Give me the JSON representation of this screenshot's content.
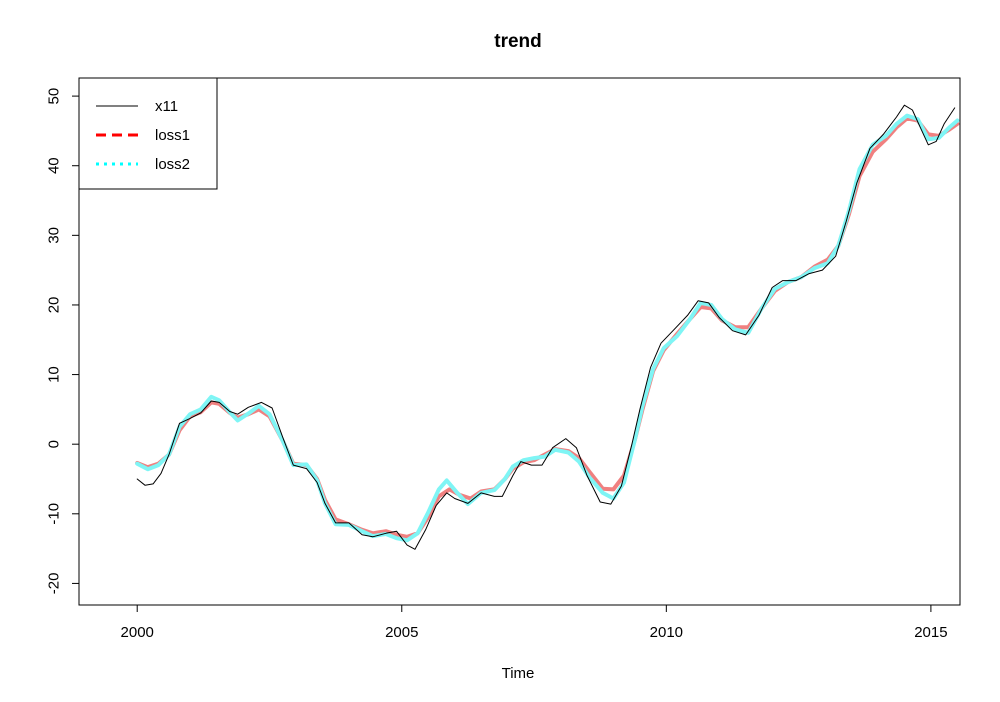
{
  "chart_data": {
    "type": "line",
    "title": "trend",
    "xlabel": "Time",
    "ylabel": "",
    "xlim": [
      1998.9,
      2015.55
    ],
    "ylim": [
      -23.1,
      52.6
    ],
    "x_ticks": [
      2000,
      2005,
      2010,
      2015
    ],
    "y_ticks": [
      -20,
      -10,
      0,
      10,
      20,
      30,
      40,
      50
    ],
    "legend_position": "top-left",
    "grid": false,
    "series": [
      {
        "name": "x11",
        "color": "#000000",
        "line_style": "solid",
        "points": [
          [
            2000.0,
            -5.0
          ],
          [
            2000.15,
            -5.9
          ],
          [
            2000.3,
            -5.7
          ],
          [
            2000.45,
            -4.2
          ],
          [
            2000.6,
            -1.5
          ],
          [
            2000.8,
            3.0
          ],
          [
            2001.0,
            3.7
          ],
          [
            2001.2,
            4.5
          ],
          [
            2001.4,
            6.2
          ],
          [
            2001.55,
            6.0
          ],
          [
            2001.75,
            4.7
          ],
          [
            2001.9,
            4.3
          ],
          [
            2002.1,
            5.3
          ],
          [
            2002.35,
            6.0
          ],
          [
            2002.55,
            5.2
          ],
          [
            2002.75,
            1.0
          ],
          [
            2002.95,
            -3.0
          ],
          [
            2003.2,
            -3.5
          ],
          [
            2003.4,
            -5.5
          ],
          [
            2003.55,
            -8.5
          ],
          [
            2003.75,
            -11.3
          ],
          [
            2004.0,
            -11.3
          ],
          [
            2004.25,
            -13.0
          ],
          [
            2004.45,
            -13.3
          ],
          [
            2004.7,
            -12.8
          ],
          [
            2004.9,
            -12.5
          ],
          [
            2005.1,
            -14.5
          ],
          [
            2005.25,
            -15.1
          ],
          [
            2005.45,
            -12.3
          ],
          [
            2005.65,
            -8.8
          ],
          [
            2005.85,
            -7.0
          ],
          [
            2006.0,
            -7.8
          ],
          [
            2006.25,
            -8.5
          ],
          [
            2006.5,
            -7.0
          ],
          [
            2006.75,
            -7.5
          ],
          [
            2006.9,
            -7.5
          ],
          [
            2007.1,
            -4.5
          ],
          [
            2007.25,
            -2.5
          ],
          [
            2007.45,
            -3.0
          ],
          [
            2007.65,
            -3.0
          ],
          [
            2007.85,
            -0.5
          ],
          [
            2008.1,
            0.8
          ],
          [
            2008.3,
            -0.5
          ],
          [
            2008.5,
            -4.5
          ],
          [
            2008.75,
            -8.3
          ],
          [
            2008.95,
            -8.6
          ],
          [
            2009.15,
            -6.0
          ],
          [
            2009.35,
            0.0
          ],
          [
            2009.5,
            5.0
          ],
          [
            2009.7,
            11.0
          ],
          [
            2009.9,
            14.5
          ],
          [
            2010.15,
            16.5
          ],
          [
            2010.4,
            18.5
          ],
          [
            2010.6,
            20.6
          ],
          [
            2010.8,
            20.3
          ],
          [
            2011.0,
            18.2
          ],
          [
            2011.25,
            16.3
          ],
          [
            2011.5,
            15.7
          ],
          [
            2011.75,
            18.5
          ],
          [
            2012.0,
            22.5
          ],
          [
            2012.2,
            23.5
          ],
          [
            2012.45,
            23.5
          ],
          [
            2012.7,
            24.5
          ],
          [
            2012.95,
            25.0
          ],
          [
            2013.2,
            27.0
          ],
          [
            2013.4,
            32.0
          ],
          [
            2013.6,
            37.5
          ],
          [
            2013.85,
            42.5
          ],
          [
            2014.1,
            44.5
          ],
          [
            2014.35,
            47.0
          ],
          [
            2014.5,
            48.7
          ],
          [
            2014.65,
            48.0
          ],
          [
            2014.8,
            45.5
          ],
          [
            2014.95,
            43.0
          ],
          [
            2015.1,
            43.5
          ],
          [
            2015.25,
            46.0
          ],
          [
            2015.45,
            48.3
          ]
        ]
      },
      {
        "name": "loss1",
        "color": "#f08080",
        "line_style": "dashed",
        "points": [
          [
            2000.0,
            -2.7
          ],
          [
            2000.2,
            -3.3
          ],
          [
            2000.4,
            -2.8
          ],
          [
            2000.6,
            -1.5
          ],
          [
            2000.8,
            2.0
          ],
          [
            2001.0,
            4.0
          ],
          [
            2001.2,
            4.6
          ],
          [
            2001.4,
            6.0
          ],
          [
            2001.55,
            5.8
          ],
          [
            2001.75,
            4.5
          ],
          [
            2001.9,
            3.8
          ],
          [
            2002.1,
            4.3
          ],
          [
            2002.3,
            5.0
          ],
          [
            2002.5,
            4.0
          ],
          [
            2002.75,
            0.5
          ],
          [
            2002.95,
            -2.8
          ],
          [
            2003.2,
            -3.0
          ],
          [
            2003.4,
            -5.0
          ],
          [
            2003.55,
            -8.0
          ],
          [
            2003.75,
            -10.8
          ],
          [
            2004.0,
            -11.5
          ],
          [
            2004.25,
            -12.3
          ],
          [
            2004.45,
            -12.8
          ],
          [
            2004.7,
            -12.5
          ],
          [
            2004.9,
            -13.0
          ],
          [
            2005.1,
            -13.3
          ],
          [
            2005.3,
            -12.8
          ],
          [
            2005.5,
            -10.5
          ],
          [
            2005.7,
            -7.5
          ],
          [
            2005.9,
            -6.5
          ],
          [
            2006.1,
            -7.3
          ],
          [
            2006.3,
            -7.8
          ],
          [
            2006.5,
            -6.8
          ],
          [
            2006.75,
            -6.5
          ],
          [
            2006.95,
            -5.0
          ],
          [
            2007.1,
            -3.5
          ],
          [
            2007.3,
            -2.6
          ],
          [
            2007.5,
            -2.3
          ],
          [
            2007.7,
            -1.5
          ],
          [
            2007.9,
            -0.7
          ],
          [
            2008.15,
            -1.0
          ],
          [
            2008.35,
            -2.0
          ],
          [
            2008.55,
            -4.0
          ],
          [
            2008.8,
            -6.4
          ],
          [
            2009.0,
            -6.5
          ],
          [
            2009.2,
            -4.5
          ],
          [
            2009.4,
            0.5
          ],
          [
            2009.55,
            5.0
          ],
          [
            2009.75,
            10.5
          ],
          [
            2009.95,
            13.5
          ],
          [
            2010.2,
            15.8
          ],
          [
            2010.45,
            18.0
          ],
          [
            2010.65,
            19.7
          ],
          [
            2010.85,
            19.5
          ],
          [
            2011.05,
            17.8
          ],
          [
            2011.3,
            16.8
          ],
          [
            2011.55,
            16.8
          ],
          [
            2011.8,
            19.5
          ],
          [
            2012.05,
            22.0
          ],
          [
            2012.3,
            23.3
          ],
          [
            2012.55,
            24.0
          ],
          [
            2012.8,
            25.5
          ],
          [
            2013.05,
            26.5
          ],
          [
            2013.25,
            28.5
          ],
          [
            2013.45,
            33.0
          ],
          [
            2013.65,
            38.5
          ],
          [
            2013.9,
            42.0
          ],
          [
            2014.15,
            43.8
          ],
          [
            2014.35,
            45.5
          ],
          [
            2014.55,
            46.8
          ],
          [
            2014.75,
            46.5
          ],
          [
            2014.95,
            44.5
          ],
          [
            2015.15,
            44.3
          ],
          [
            2015.35,
            45.2
          ],
          [
            2015.5,
            46.0
          ]
        ]
      },
      {
        "name": "loss2",
        "color": "#7ff5f5",
        "line_style": "dotted",
        "points": [
          [
            2000.0,
            -2.8
          ],
          [
            2000.2,
            -3.6
          ],
          [
            2000.4,
            -3.0
          ],
          [
            2000.6,
            -1.5
          ],
          [
            2000.8,
            2.5
          ],
          [
            2001.0,
            4.3
          ],
          [
            2001.2,
            5.0
          ],
          [
            2001.4,
            6.8
          ],
          [
            2001.55,
            6.3
          ],
          [
            2001.75,
            4.6
          ],
          [
            2001.9,
            3.4
          ],
          [
            2002.1,
            4.4
          ],
          [
            2002.3,
            5.5
          ],
          [
            2002.5,
            4.3
          ],
          [
            2002.75,
            0.5
          ],
          [
            2002.95,
            -3.0
          ],
          [
            2003.2,
            -2.9
          ],
          [
            2003.4,
            -5.2
          ],
          [
            2003.55,
            -8.5
          ],
          [
            2003.75,
            -11.5
          ],
          [
            2004.0,
            -11.6
          ],
          [
            2004.25,
            -12.5
          ],
          [
            2004.45,
            -13.2
          ],
          [
            2004.7,
            -12.9
          ],
          [
            2004.9,
            -13.5
          ],
          [
            2005.1,
            -13.8
          ],
          [
            2005.3,
            -12.8
          ],
          [
            2005.5,
            -9.8
          ],
          [
            2005.7,
            -6.5
          ],
          [
            2005.85,
            -5.2
          ],
          [
            2006.05,
            -7.0
          ],
          [
            2006.25,
            -8.6
          ],
          [
            2006.5,
            -7.0
          ],
          [
            2006.75,
            -6.6
          ],
          [
            2006.95,
            -5.0
          ],
          [
            2007.1,
            -3.2
          ],
          [
            2007.3,
            -2.3
          ],
          [
            2007.5,
            -2.0
          ],
          [
            2007.7,
            -1.8
          ],
          [
            2007.9,
            -0.8
          ],
          [
            2008.15,
            -1.2
          ],
          [
            2008.35,
            -2.5
          ],
          [
            2008.55,
            -4.8
          ],
          [
            2008.8,
            -7.0
          ],
          [
            2009.0,
            -7.8
          ],
          [
            2009.2,
            -5.5
          ],
          [
            2009.4,
            0.5
          ],
          [
            2009.55,
            5.5
          ],
          [
            2009.75,
            10.8
          ],
          [
            2009.95,
            13.8
          ],
          [
            2010.2,
            15.5
          ],
          [
            2010.45,
            18.0
          ],
          [
            2010.65,
            20.3
          ],
          [
            2010.85,
            20.0
          ],
          [
            2011.05,
            18.0
          ],
          [
            2011.3,
            16.5
          ],
          [
            2011.55,
            16.0
          ],
          [
            2011.8,
            19.5
          ],
          [
            2012.05,
            22.3
          ],
          [
            2012.3,
            23.3
          ],
          [
            2012.55,
            24.0
          ],
          [
            2012.8,
            25.3
          ],
          [
            2013.05,
            26.0
          ],
          [
            2013.25,
            28.5
          ],
          [
            2013.45,
            33.5
          ],
          [
            2013.65,
            39.5
          ],
          [
            2013.9,
            43.0
          ],
          [
            2014.15,
            44.3
          ],
          [
            2014.35,
            46.0
          ],
          [
            2014.55,
            47.2
          ],
          [
            2014.75,
            46.7
          ],
          [
            2014.95,
            43.8
          ],
          [
            2015.15,
            44.0
          ],
          [
            2015.35,
            45.5
          ],
          [
            2015.5,
            46.5
          ]
        ]
      }
    ]
  }
}
